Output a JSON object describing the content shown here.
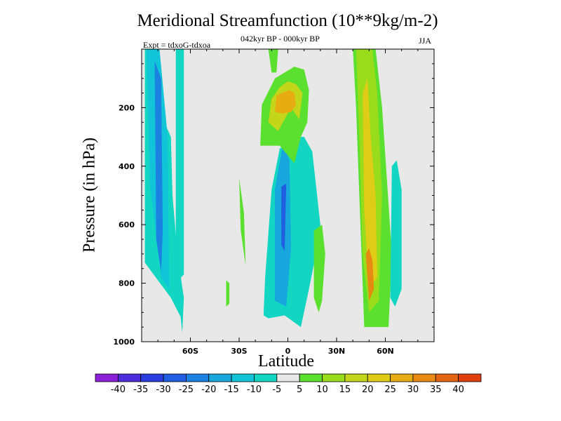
{
  "chart_data": {
    "type": "heatmap",
    "title": "Meridional Streamfunction (10**9kg/m-2)",
    "subtitle": "042kyr BP - 000kyr BP",
    "left_note": "Expt = tdxoG-tdxoa",
    "right_note": "JJA",
    "xlabel": "Latitude",
    "ylabel": "Pressure (in hPa)",
    "xlim": [
      -90,
      90
    ],
    "ylim": [
      1000,
      0
    ],
    "x_ticks": [
      {
        "value": -60,
        "label": "60S"
      },
      {
        "value": -30,
        "label": "30S"
      },
      {
        "value": 0,
        "label": "0"
      },
      {
        "value": 30,
        "label": "30N"
      },
      {
        "value": 60,
        "label": "60N"
      }
    ],
    "y_ticks": [
      {
        "value": 200,
        "label": "200"
      },
      {
        "value": 400,
        "label": "400"
      },
      {
        "value": 600,
        "label": "600"
      },
      {
        "value": 800,
        "label": "800"
      },
      {
        "value": 1000,
        "label": "1000"
      }
    ],
    "colorbar": {
      "levels": [
        -40,
        -35,
        -30,
        -25,
        -20,
        -15,
        -10,
        -5,
        5,
        10,
        15,
        20,
        25,
        30,
        35,
        40
      ],
      "labels": [
        "-40",
        "-35",
        "-30",
        "-25",
        "-20",
        "-15",
        "-10",
        "-5",
        "5",
        "10",
        "15",
        "20",
        "25",
        "30",
        "35",
        "40"
      ],
      "colors": [
        "#8c1fd8",
        "#4b2ed9",
        "#2a3ee0",
        "#1f5fe0",
        "#1b82e2",
        "#18a7dd",
        "#12c4d8",
        "#12d6c1",
        "#e8e8e8",
        "#5ce02f",
        "#99dc1b",
        "#c3d61a",
        "#dfcc16",
        "#e6ad12",
        "#e68a12",
        "#e46510",
        "#e0400d"
      ]
    },
    "background_color": "#e8e8e8",
    "regions": [
      {
        "name": "SH high-lat negative cell",
        "bin": -10,
        "x": [
          -88,
          -88,
          -72,
          -66,
          -65,
          -64,
          -68,
          -71,
          -72,
          -80,
          -86
        ],
        "y": [
          0,
          730,
          850,
          915,
          970,
          850,
          700,
          500,
          300,
          200,
          0
        ]
      },
      {
        "name": "SH high-lat core",
        "bin": -15,
        "x": [
          -87,
          -85,
          -78,
          -73,
          -74,
          -79
        ],
        "y": [
          0,
          460,
          780,
          820,
          300,
          0
        ]
      },
      {
        "name": "SH high-lat inner",
        "bin": -25,
        "x": [
          -82,
          -81,
          -78,
          -77,
          -78
        ],
        "y": [
          40,
          650,
          760,
          620,
          100
        ]
      },
      {
        "name": "SH strip",
        "bin": -10,
        "x": [
          -69,
          -69,
          -64,
          -64
        ],
        "y": [
          0,
          800,
          770,
          0
        ]
      },
      {
        "name": "Tropical negative cell",
        "bin": -10,
        "x": [
          -15,
          -14,
          -10,
          -5,
          5,
          10,
          15,
          18,
          20,
          18,
          13,
          8,
          -2,
          -12
        ],
        "y": [
          910,
          780,
          480,
          340,
          300,
          300,
          350,
          500,
          600,
          680,
          820,
          950,
          910,
          920
        ]
      },
      {
        "name": "Tropical core",
        "bin": -20,
        "x": [
          -8,
          -8,
          -3,
          1,
          2,
          -1
        ],
        "y": [
          860,
          480,
          320,
          380,
          680,
          880
        ]
      },
      {
        "name": "Tropical inner",
        "bin": -30,
        "x": [
          -4,
          -4,
          -2,
          -1
        ],
        "y": [
          470,
          670,
          690,
          460
        ]
      },
      {
        "name": "Tropical upper positive",
        "bin": 5,
        "x": [
          -17,
          -16,
          -8,
          -2,
          4,
          10,
          13,
          12,
          8,
          4,
          -5,
          -14
        ],
        "y": [
          330,
          190,
          100,
          80,
          60,
          70,
          140,
          250,
          300,
          390,
          330,
          330
        ]
      },
      {
        "name": "Tropical upper 15",
        "bin": 15,
        "x": [
          -12,
          -10,
          -5,
          0,
          5,
          9,
          7,
          2,
          -6
        ],
        "y": [
          250,
          170,
          130,
          110,
          120,
          150,
          240,
          200,
          280
        ]
      },
      {
        "name": "Tropical upper 25",
        "bin": 25,
        "x": [
          -8,
          -7,
          -4,
          1,
          4,
          5,
          2,
          -3
        ],
        "y": [
          215,
          160,
          150,
          140,
          150,
          190,
          215,
          220
        ]
      },
      {
        "name": "Tropical upper top",
        "bin": 5,
        "x": [
          -12,
          -10,
          -7,
          -6
        ],
        "y": [
          0,
          80,
          80,
          0
        ]
      },
      {
        "name": "NH tropical positive",
        "bin": 5,
        "x": [
          16,
          16,
          21,
          23,
          21,
          19
        ],
        "y": [
          850,
          620,
          600,
          700,
          860,
          900
        ]
      },
      {
        "name": "NH mid-lat positive",
        "bin": 5,
        "x": [
          40,
          42,
          44,
          46,
          47,
          62,
          64,
          58,
          54,
          50,
          46,
          44,
          42
        ],
        "y": [
          0,
          200,
          500,
          800,
          950,
          950,
          700,
          200,
          0,
          0,
          30,
          0,
          0
        ]
      },
      {
        "name": "NH mid-lat 10",
        "bin": 10,
        "x": [
          42,
          44,
          46,
          50,
          56,
          58,
          55,
          52,
          47,
          44
        ],
        "y": [
          0,
          300,
          700,
          900,
          860,
          500,
          150,
          0,
          0,
          0
        ]
      },
      {
        "name": "NH mid-lat 20",
        "bin": 20,
        "x": [
          46,
          47,
          50,
          55,
          54,
          51,
          49
        ],
        "y": [
          150,
          550,
          820,
          780,
          500,
          300,
          100
        ]
      },
      {
        "name": "NH mid-lat 30",
        "bin": 30,
        "x": [
          48,
          50,
          53,
          52,
          50
        ],
        "y": [
          700,
          860,
          820,
          720,
          680
        ]
      },
      {
        "name": "NH sub-polar negative",
        "bin": -10,
        "x": [
          64,
          63,
          66,
          70,
          70,
          67
        ],
        "y": [
          400,
          850,
          880,
          820,
          480,
          380
        ]
      },
      {
        "name": "SH positive 1",
        "bin": 5,
        "x": [
          -30,
          -29,
          -26,
          -27
        ],
        "y": [
          440,
          620,
          740,
          560
        ]
      },
      {
        "name": "SH positive 2",
        "bin": 5,
        "x": [
          -38,
          -38,
          -36,
          -36
        ],
        "y": [
          790,
          880,
          870,
          800
        ]
      }
    ]
  }
}
